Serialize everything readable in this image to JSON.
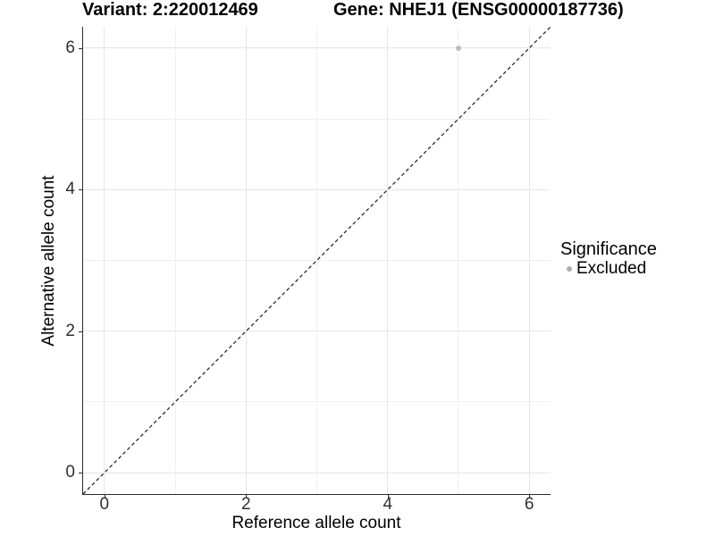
{
  "header": {
    "variant_title": "Variant: 2:220012469",
    "gene_title": "Gene: NHEJ1 (ENSG00000187736)"
  },
  "chart_data": {
    "type": "scatter",
    "title_left": "Variant: 2:220012469",
    "title_right": "Gene: NHEJ1 (ENSG00000187736)",
    "xlabel": "Reference allele count",
    "ylabel": "Alternative allele count",
    "xlim": [
      -0.3,
      6.3
    ],
    "ylim": [
      -0.3,
      6.3
    ],
    "x_ticks": [
      0,
      2,
      4,
      6
    ],
    "y_ticks": [
      0,
      2,
      4,
      6
    ],
    "x_minor_gridlines": [
      1,
      3,
      5
    ],
    "y_minor_gridlines": [
      1,
      3,
      5
    ],
    "grid": "major and minor gridlines on white background",
    "points": [
      {
        "x": 5,
        "y": 6,
        "series": "Excluded"
      }
    ],
    "identity_line": {
      "description": "dashed y = x reference line from panel corner to corner",
      "from": [
        -0.3,
        -0.3
      ],
      "to": [
        6.3,
        6.3
      ],
      "style": "dashed",
      "color": "#1a1a1a"
    },
    "legend": {
      "title": "Significance",
      "position": "right",
      "entries": [
        {
          "label": "Excluded",
          "color": "#adadad",
          "marker": "circle"
        }
      ]
    }
  },
  "colors": {
    "background": "#ffffff",
    "grid_major": "#e5e5e5",
    "grid_minor": "#f0f0f0",
    "axis_line": "#2b2b2b",
    "tick_label": "#303030",
    "point": "#bdbdbd",
    "legend_marker": "#adadad"
  }
}
